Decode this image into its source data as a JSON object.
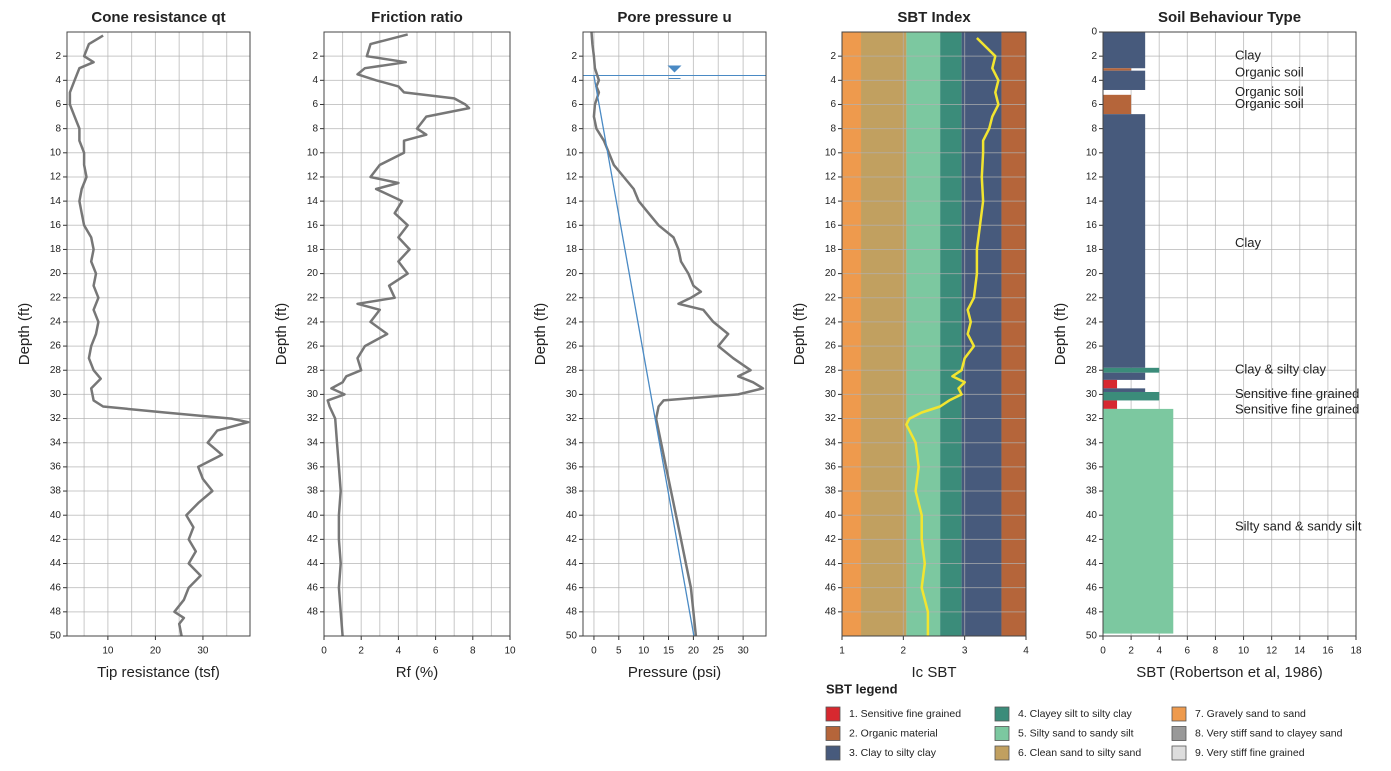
{
  "chart_data": [
    {
      "type": "line",
      "title": "Cone resistance qt",
      "xlabel": "Tip resistance (tsf)",
      "ylabel": "Depth (ft)",
      "xlim": [
        1.4,
        39.9
      ],
      "xticks": [
        10,
        20,
        30
      ],
      "xgrid": [
        5,
        10,
        15,
        20,
        25,
        30,
        35
      ],
      "ylim": [
        0,
        50
      ],
      "yticks": [
        2,
        4,
        6,
        8,
        10,
        12,
        14,
        16,
        18,
        20,
        22,
        24,
        26,
        28,
        30,
        32,
        34,
        36,
        38,
        40,
        42,
        44,
        46,
        48,
        50
      ],
      "grid": true,
      "series": [
        {
          "color": "#777777",
          "depth": [
            0.3,
            1,
            2,
            2.5,
            3,
            4,
            5,
            6,
            7,
            8,
            9,
            10,
            11,
            12,
            13,
            14,
            15,
            16,
            17,
            18,
            19,
            20,
            21,
            22,
            23,
            24,
            25,
            26,
            27,
            28,
            28.7,
            29.5,
            30.5,
            31,
            31.5,
            32,
            32.3,
            33,
            34,
            35,
            36,
            37,
            38,
            39,
            40,
            41,
            42,
            43,
            44,
            45,
            46,
            47,
            48,
            48.5,
            49,
            50
          ],
          "values": [
            9,
            6,
            5,
            7,
            4,
            3,
            2,
            2,
            3,
            4,
            4,
            5,
            5,
            5.5,
            4.5,
            4,
            4.5,
            5,
            6.5,
            7,
            6.5,
            7.5,
            7,
            8,
            7,
            8,
            7.5,
            6.5,
            6,
            7,
            8.5,
            6.5,
            7,
            9,
            22,
            36,
            39.5,
            33,
            31,
            34,
            29,
            30,
            32,
            29,
            26.5,
            28,
            27,
            28.5,
            27,
            29.5,
            27,
            26,
            24,
            26,
            25,
            25.5
          ]
        }
      ]
    },
    {
      "type": "line",
      "title": "Friction ratio",
      "xlabel": "Rf (%)",
      "ylabel": "Depth (ft)",
      "xlim": [
        0,
        10
      ],
      "xticks": [
        0,
        2,
        4,
        6,
        8,
        10
      ],
      "xgrid": [
        1,
        2,
        3,
        4,
        5,
        6,
        7,
        8,
        9
      ],
      "ylim": [
        0,
        50
      ],
      "yticks": [
        2,
        4,
        6,
        8,
        10,
        12,
        14,
        16,
        18,
        20,
        22,
        24,
        26,
        28,
        30,
        32,
        34,
        36,
        38,
        40,
        42,
        44,
        46,
        48
      ],
      "grid": true,
      "series": [
        {
          "color": "#777777",
          "depth": [
            0.2,
            1,
            2,
            2.5,
            3,
            3.5,
            4,
            4.5,
            5,
            5.5,
            6,
            6.3,
            7,
            8,
            8.5,
            9,
            10,
            11,
            12,
            12.5,
            13,
            14,
            15,
            16,
            17,
            18,
            19,
            20,
            21,
            22,
            22.5,
            23,
            24,
            25,
            26,
            27,
            28,
            28.5,
            29,
            29.5,
            30,
            30.5,
            31,
            32,
            34,
            36,
            38,
            40,
            42,
            44,
            46,
            48,
            50
          ],
          "values": [
            4.5,
            2.5,
            2.3,
            4.4,
            2.2,
            1.8,
            2.8,
            4,
            4.3,
            7,
            7.6,
            7.8,
            5.5,
            5,
            5.5,
            4.3,
            4.3,
            3,
            2.5,
            4,
            2.8,
            4.2,
            3.8,
            4.5,
            4,
            4.6,
            4,
            4.5,
            3.5,
            3.8,
            1.8,
            3,
            2.5,
            3.4,
            2.2,
            1.8,
            2,
            1.2,
            1,
            0.4,
            1.1,
            0.2,
            0.3,
            0.6,
            0.7,
            0.8,
            0.9,
            0.8,
            0.8,
            0.9,
            0.8,
            0.9,
            1
          ]
        }
      ]
    },
    {
      "type": "line",
      "title": "Pore pressure u",
      "xlabel": "Pressure (psi)",
      "ylabel": "Depth (ft)",
      "xlim": [
        -2.2,
        34.6
      ],
      "xticks": [
        0,
        5,
        10,
        15,
        20,
        25,
        30
      ],
      "ylim": [
        0,
        50
      ],
      "yticks": [
        2,
        4,
        6,
        8,
        10,
        12,
        14,
        16,
        18,
        20,
        22,
        24,
        26,
        28,
        30,
        32,
        34,
        36,
        38,
        40,
        42,
        44,
        46,
        48,
        50
      ],
      "grid": true,
      "water_table": 3.6,
      "series": [
        {
          "color": "#777777",
          "depth": [
            0,
            1,
            2,
            3,
            4,
            4.5,
            5,
            6,
            7,
            8,
            9,
            10,
            11,
            12,
            13,
            14,
            15,
            16,
            17,
            18,
            19,
            20,
            21,
            21.5,
            22,
            22.5,
            23,
            24,
            25,
            26,
            27,
            28,
            28.5,
            29,
            29.5,
            30,
            30.5,
            31,
            32,
            34,
            36,
            38,
            40,
            42,
            44,
            46,
            48,
            50
          ],
          "values": [
            -0.5,
            -0.3,
            0,
            0.2,
            1,
            0.5,
            1,
            0.2,
            0,
            0.5,
            2,
            3,
            4,
            6,
            8,
            9,
            11,
            13,
            16,
            17,
            17.5,
            19,
            20,
            21.5,
            19.5,
            17,
            22,
            24,
            27,
            25,
            28,
            31.5,
            29,
            32,
            34,
            29,
            14,
            13,
            12.5,
            13.5,
            14.5,
            15.5,
            16.5,
            17.5,
            18.5,
            19.5,
            20,
            20.5
          ]
        },
        {
          "color": "#4a8ac4",
          "depth": [
            3.6,
            50
          ],
          "values": [
            0,
            20.1
          ]
        }
      ]
    },
    {
      "type": "line",
      "title": "SBT Index",
      "xlabel": "Ic SBT",
      "ylabel": "Depth (ft)",
      "xlim": [
        1,
        4
      ],
      "xticks": [
        1,
        2,
        3,
        4
      ],
      "ylim": [
        0,
        50
      ],
      "yticks": [
        2,
        4,
        6,
        8,
        10,
        12,
        14,
        16,
        18,
        20,
        22,
        24,
        26,
        28,
        30,
        32,
        34,
        36,
        38,
        40,
        42,
        44,
        46,
        48
      ],
      "grid": true,
      "band_edges": [
        1,
        1.31,
        2.05,
        2.6,
        2.95,
        3.6,
        4
      ],
      "band_colors": [
        "#ee9a4d",
        "#c1a060",
        "#7cc8a0",
        "#3b8c7a",
        "#475a7c",
        "#b5653a"
      ],
      "series": [
        {
          "color": "#f2e530",
          "depth": [
            0.5,
            1,
            2,
            3,
            4,
            5,
            6,
            7,
            8,
            9,
            10,
            12,
            14,
            16,
            18,
            20,
            22,
            23,
            24,
            25,
            26,
            27,
            28,
            28.5,
            29,
            29.5,
            30,
            30.5,
            31,
            31.5,
            32,
            32.5,
            34,
            36,
            38,
            40,
            42,
            44,
            46,
            48,
            50
          ],
          "values": [
            3.2,
            3.3,
            3.5,
            3.45,
            3.55,
            3.5,
            3.55,
            3.45,
            3.4,
            3.3,
            3.3,
            3.28,
            3.3,
            3.25,
            3.2,
            3.2,
            3.15,
            3.05,
            3.1,
            3.05,
            3.15,
            3,
            2.95,
            2.8,
            3,
            2.9,
            2.95,
            2.75,
            2.6,
            2.3,
            2.1,
            2.05,
            2.2,
            2.25,
            2.2,
            2.3,
            2.3,
            2.35,
            2.3,
            2.4,
            2.4
          ]
        }
      ]
    },
    {
      "type": "bar",
      "title": "Soil Behaviour Type",
      "xlabel": "SBT (Robertson et al, 1986)",
      "ylabel": "Depth (ft)",
      "xlim": [
        0,
        18
      ],
      "xticks": [
        0,
        2,
        4,
        6,
        8,
        10,
        12,
        14,
        16,
        18
      ],
      "ylim": [
        0,
        50
      ],
      "yticks": [
        0,
        2,
        4,
        6,
        8,
        10,
        12,
        14,
        16,
        18,
        20,
        22,
        24,
        26,
        28,
        30,
        32,
        34,
        36,
        38,
        40,
        42,
        44,
        46,
        48,
        50
      ],
      "grid": true,
      "layers": [
        {
          "top": 0,
          "bottom": 3,
          "value": 3
        },
        {
          "top": 3,
          "bottom": 3.2,
          "value": 2
        },
        {
          "top": 3.2,
          "bottom": 4.8,
          "value": 3
        },
        {
          "top": 5.2,
          "bottom": 6.8,
          "value": 2
        },
        {
          "top": 6.8,
          "bottom": 27.8,
          "value": 3
        },
        {
          "top": 27.8,
          "bottom": 28.2,
          "value": 4
        },
        {
          "top": 28.2,
          "bottom": 28.8,
          "value": 3
        },
        {
          "top": 28.8,
          "bottom": 29.5,
          "value": 1
        },
        {
          "top": 29.5,
          "bottom": 29.8,
          "value": 3
        },
        {
          "top": 29.8,
          "bottom": 30.5,
          "value": 4
        },
        {
          "top": 30.5,
          "bottom": 31.2,
          "value": 1
        },
        {
          "top": 31.2,
          "bottom": 49.8,
          "value": 5
        }
      ],
      "annotations": [
        {
          "text": "Clay",
          "depth": 2
        },
        {
          "text": "Organic soil",
          "depth": 3.4
        },
        {
          "text": "Organic soil",
          "depth": 5
        },
        {
          "text": "Organic soil",
          "depth": 6
        },
        {
          "text": "Clay",
          "depth": 17.5
        },
        {
          "text": "Clay & silty clay",
          "depth": 28
        },
        {
          "text": "Sensitive fine grained",
          "depth": 30
        },
        {
          "text": "Sensitive fine grained",
          "depth": 31.3
        },
        {
          "text": "Silty sand & sandy silt",
          "depth": 41
        }
      ],
      "legend": {
        "title": "SBT legend",
        "items": [
          {
            "name": "1. Sensitive fine grained",
            "color": "#d7282f"
          },
          {
            "name": "2. Organic material",
            "color": "#b5653a"
          },
          {
            "name": "3. Clay to silty clay",
            "color": "#475a7c"
          },
          {
            "name": "4. Clayey silt to silty clay",
            "color": "#3b8c7a"
          },
          {
            "name": "5. Silty sand to sandy silt",
            "color": "#7cc8a0"
          },
          {
            "name": "6. Clean sand to silty sand",
            "color": "#c1a060"
          },
          {
            "name": "7. Gravely sand to sand",
            "color": "#ee9a4d"
          },
          {
            "name": "8. Very stiff sand to clayey sand",
            "color": "#999999"
          },
          {
            "name": "9. Very stiff fine grained",
            "color": "#dddddd"
          }
        ]
      }
    }
  ]
}
